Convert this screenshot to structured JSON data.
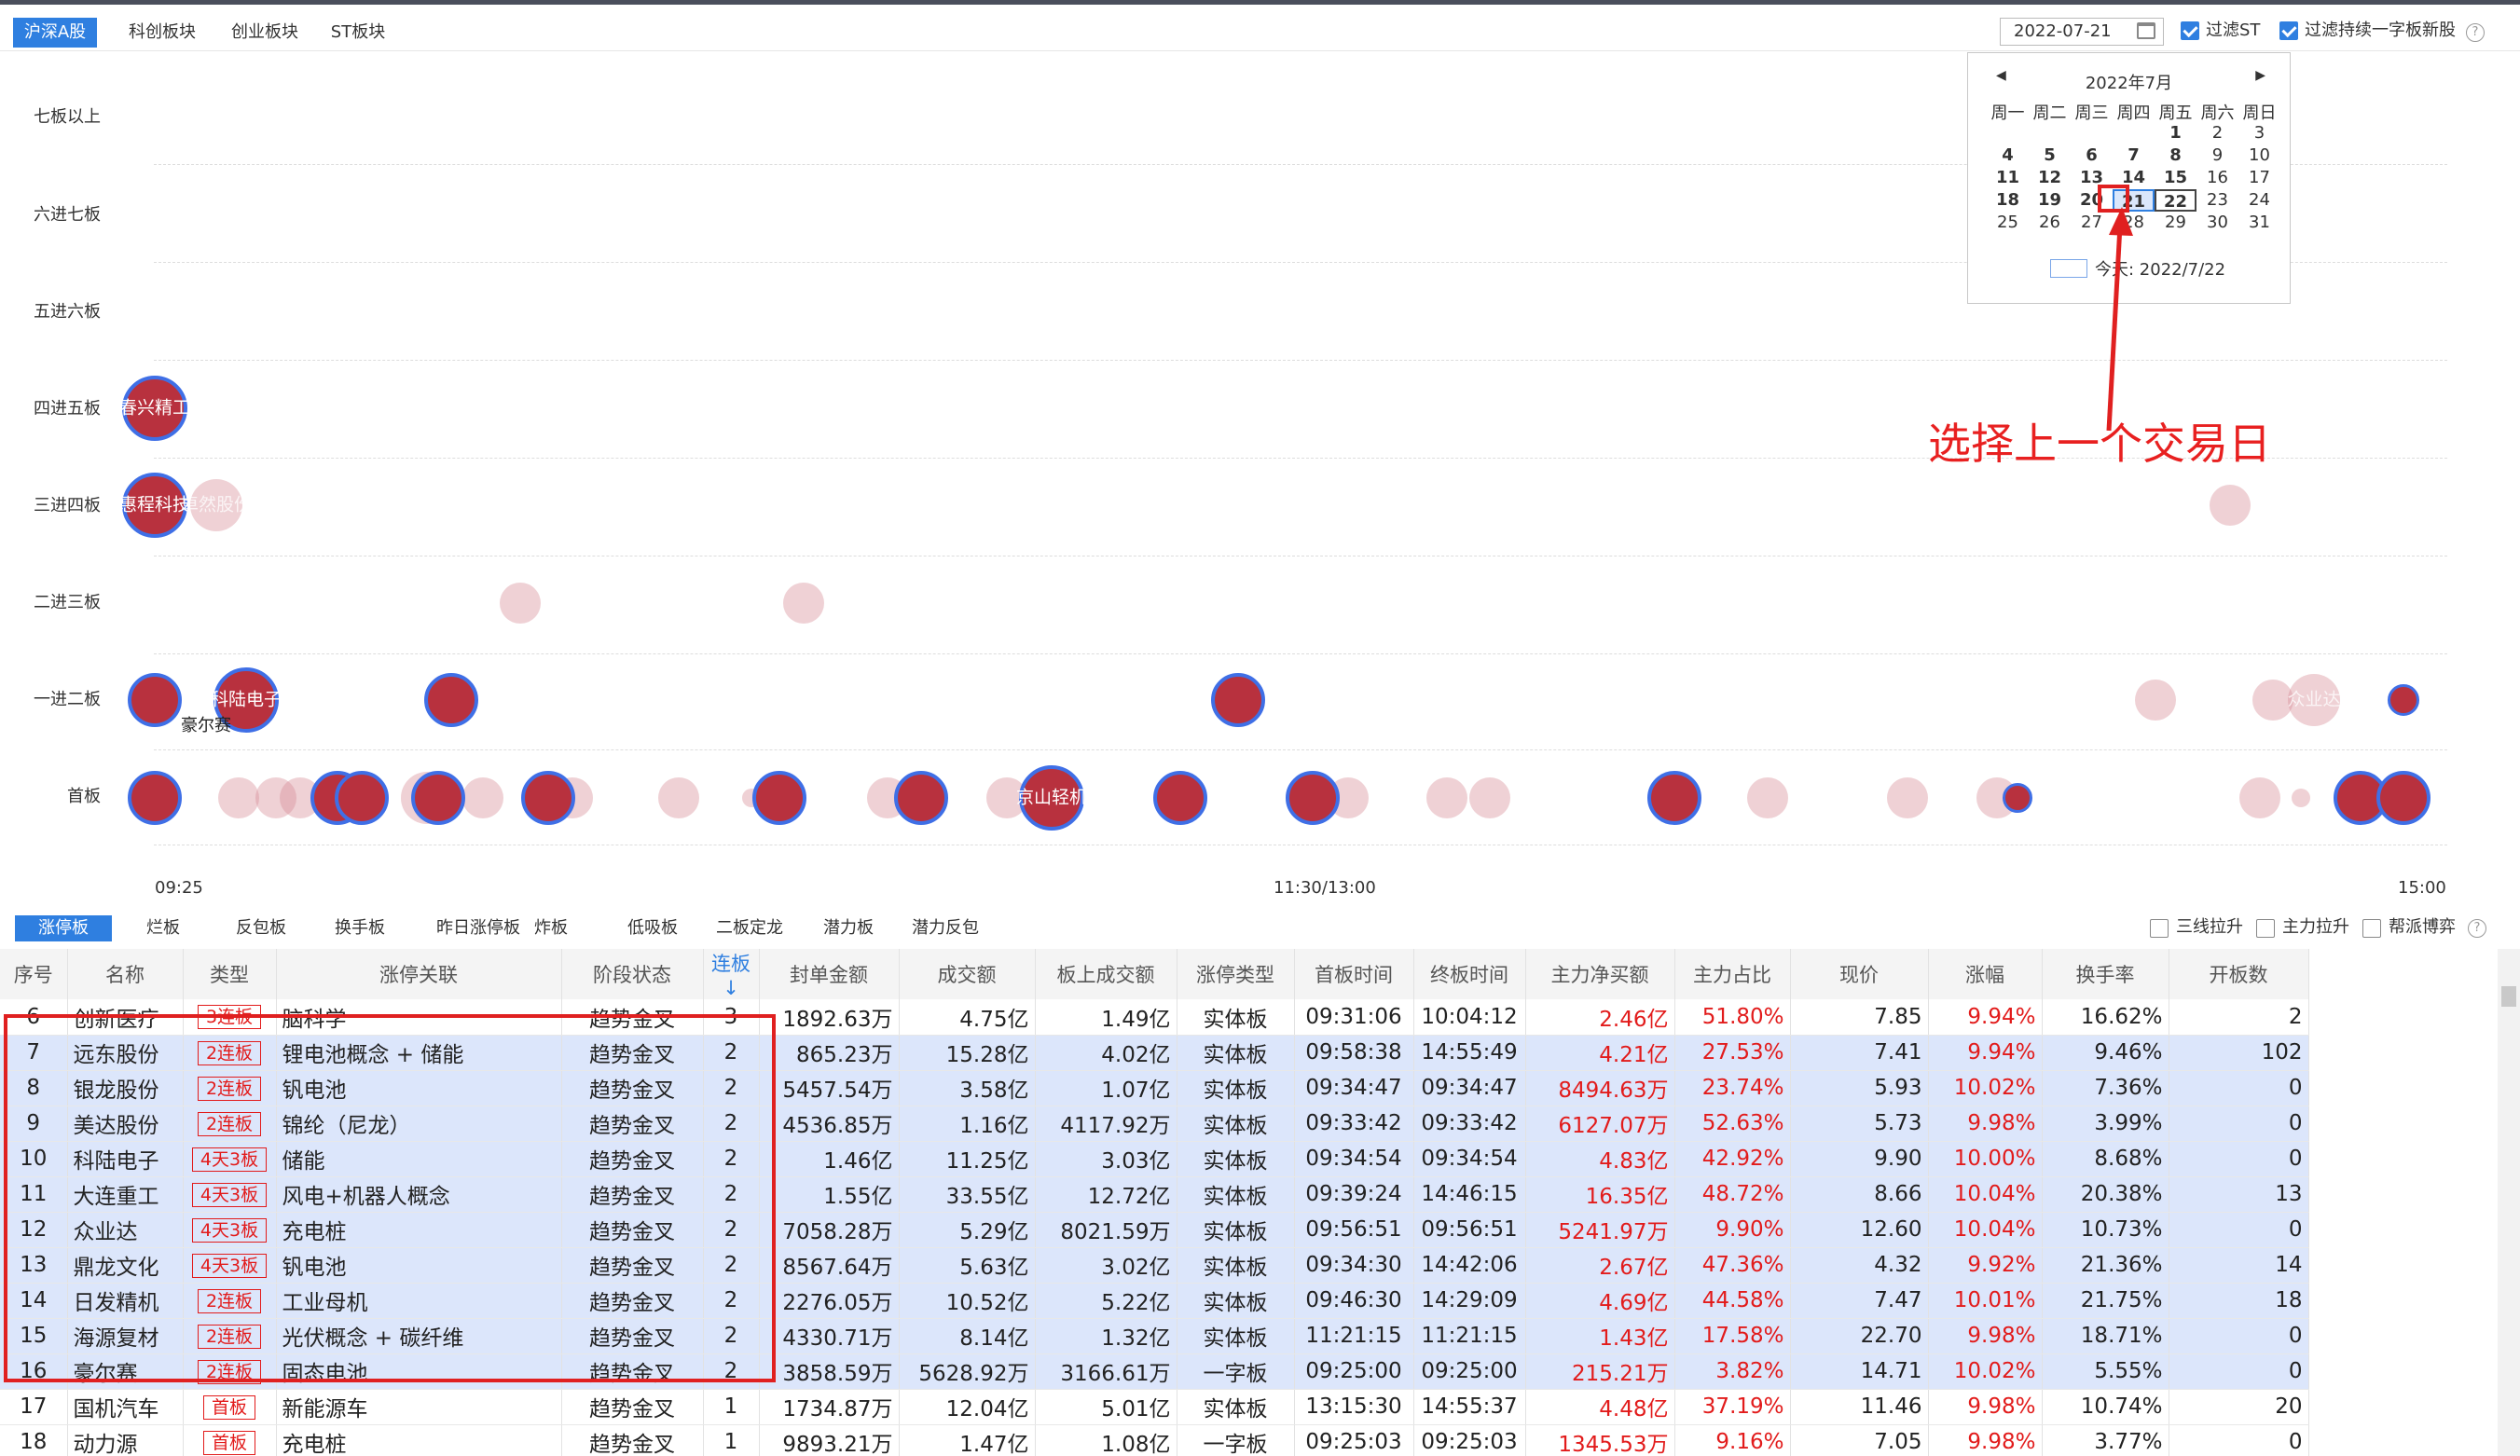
{
  "market_tabs": [
    "沪深A股",
    "科创板块",
    "创业板块",
    "ST板块"
  ],
  "date": "2022-07-21",
  "filters": [
    {
      "label": "过滤ST",
      "checked": true
    },
    {
      "label": "过滤持续一字板新股",
      "checked": true
    }
  ],
  "chart": {
    "levels": [
      "七板以上",
      "六进七板",
      "五进六板",
      "四进五板",
      "三进四板",
      "二进三板",
      "一进二板",
      "首板"
    ],
    "time_labels": [
      "09:25",
      "11:30/13:00",
      "15:00"
    ],
    "bubble_labels": {
      "chunxing": "春兴精工",
      "huicheng": "惠程科技",
      "zhuoran": "卓然股份",
      "keluo": "科陆电子",
      "haoer": "豪尔赛",
      "jingshan": "京山轻机",
      "right_faint": "众业达"
    }
  },
  "calendar": {
    "month": "2022年7月",
    "weekdays": [
      "周一",
      "周二",
      "周三",
      "周四",
      "周五",
      "周六",
      "周日"
    ],
    "days": [
      "",
      "",
      "",
      "",
      "1",
      "2",
      "3",
      "4",
      "5",
      "6",
      "7",
      "8",
      "9",
      "10",
      "11",
      "12",
      "13",
      "14",
      "15",
      "16",
      "17",
      "18",
      "19",
      "20",
      "21",
      "22",
      "23",
      "24",
      "25",
      "26",
      "27",
      "28",
      "29",
      "30",
      "31"
    ],
    "today_label": "今天: 2022/7/22"
  },
  "annotation": "选择上一个交易日",
  "sub_tabs": [
    "涨停板",
    "烂板",
    "反包板",
    "换手板",
    "昨日涨停板",
    "炸板",
    "低吸板",
    "二板定龙",
    "潜力板",
    "潜力反包"
  ],
  "sub_filters": [
    {
      "label": "三线拉升"
    },
    {
      "label": "主力拉升"
    },
    {
      "label": "帮派博弈"
    }
  ],
  "table": {
    "headers": [
      "序号",
      "名称",
      "类型",
      "涨停关联",
      "阶段状态",
      "连板↓",
      "封单金额",
      "成交额",
      "板上成交额",
      "涨停类型",
      "首板时间",
      "终板时间",
      "主力净买额",
      "主力占比",
      "现价",
      "涨幅",
      "换手率",
      "开板数"
    ],
    "rows": [
      [
        "6",
        "创新医疗",
        "3连板",
        "脑科学",
        "趋势金叉",
        "3",
        "1892.63万",
        "4.75亿",
        "1.49亿",
        "实体板",
        "09:31:06",
        "10:04:12",
        "2.46亿",
        "51.80%",
        "7.85",
        "9.94%",
        "16.62%",
        "2"
      ],
      [
        "7",
        "远东股份",
        "2连板",
        "锂电池概念 + 储能",
        "趋势金叉",
        "2",
        "865.23万",
        "15.28亿",
        "4.02亿",
        "实体板",
        "09:58:38",
        "14:55:49",
        "4.21亿",
        "27.53%",
        "7.41",
        "9.94%",
        "9.46%",
        "102"
      ],
      [
        "8",
        "银龙股份",
        "2连板",
        "钒电池",
        "趋势金叉",
        "2",
        "5457.54万",
        "3.58亿",
        "1.07亿",
        "实体板",
        "09:34:47",
        "09:34:47",
        "8494.63万",
        "23.74%",
        "5.93",
        "10.02%",
        "7.36%",
        "0"
      ],
      [
        "9",
        "美达股份",
        "2连板",
        "锦纶（尼龙）",
        "趋势金叉",
        "2",
        "4536.85万",
        "1.16亿",
        "4117.92万",
        "实体板",
        "09:33:42",
        "09:33:42",
        "6127.07万",
        "52.63%",
        "5.73",
        "9.98%",
        "3.99%",
        "0"
      ],
      [
        "10",
        "科陆电子",
        "4天3板",
        "储能",
        "趋势金叉",
        "2",
        "1.46亿",
        "11.25亿",
        "3.03亿",
        "实体板",
        "09:34:54",
        "09:34:54",
        "4.83亿",
        "42.92%",
        "9.90",
        "10.00%",
        "8.68%",
        "0"
      ],
      [
        "11",
        "大连重工",
        "4天3板",
        "风电+机器人概念",
        "趋势金叉",
        "2",
        "1.55亿",
        "33.55亿",
        "12.72亿",
        "实体板",
        "09:39:24",
        "14:46:15",
        "16.35亿",
        "48.72%",
        "8.66",
        "10.04%",
        "20.38%",
        "13"
      ],
      [
        "12",
        "众业达",
        "4天3板",
        "充电桩",
        "趋势金叉",
        "2",
        "7058.28万",
        "5.29亿",
        "8021.59万",
        "实体板",
        "09:56:51",
        "09:56:51",
        "5241.97万",
        "9.90%",
        "12.60",
        "10.04%",
        "10.73%",
        "0"
      ],
      [
        "13",
        "鼎龙文化",
        "4天3板",
        "钒电池",
        "趋势金叉",
        "2",
        "8567.64万",
        "5.63亿",
        "3.02亿",
        "实体板",
        "09:34:30",
        "14:42:06",
        "2.67亿",
        "47.36%",
        "4.32",
        "9.92%",
        "21.36%",
        "14"
      ],
      [
        "14",
        "日发精机",
        "2连板",
        "工业母机",
        "趋势金叉",
        "2",
        "2276.05万",
        "10.52亿",
        "5.22亿",
        "实体板",
        "09:46:30",
        "14:29:09",
        "4.69亿",
        "44.58%",
        "7.47",
        "10.01%",
        "21.75%",
        "18"
      ],
      [
        "15",
        "海源复材",
        "2连板",
        "光伏概念 + 碳纤维",
        "趋势金叉",
        "2",
        "4330.71万",
        "8.14亿",
        "1.32亿",
        "实体板",
        "11:21:15",
        "11:21:15",
        "1.43亿",
        "17.58%",
        "22.70",
        "9.98%",
        "18.71%",
        "0"
      ],
      [
        "16",
        "豪尔赛",
        "2连板",
        "固态电池",
        "趋势金叉",
        "2",
        "3858.59万",
        "5628.92万",
        "3166.61万",
        "一字板",
        "09:25:00",
        "09:25:00",
        "215.21万",
        "3.82%",
        "14.71",
        "10.02%",
        "5.55%",
        "0"
      ],
      [
        "17",
        "国机汽车",
        "首板",
        "新能源车",
        "趋势金叉",
        "1",
        "1734.87万",
        "12.04亿",
        "5.01亿",
        "实体板",
        "13:15:30",
        "14:55:37",
        "4.48亿",
        "37.19%",
        "11.46",
        "9.98%",
        "10.74%",
        "20"
      ],
      [
        "18",
        "动力源",
        "首板",
        "充电桩",
        "趋势金叉",
        "1",
        "9893.21万",
        "1.47亿",
        "1.08亿",
        "一字板",
        "09:25:03",
        "09:25:03",
        "1345.53万",
        "9.16%",
        "7.05",
        "9.98%",
        "3.77%",
        "0"
      ]
    ]
  },
  "colors": {
    "accent": "#2f7fe0",
    "bubble": "#b8313e",
    "bubble_ring": "#3f6fe6",
    "up": "#e21b1b",
    "highlight": "#dce6fb",
    "annotation": "#e82020"
  }
}
